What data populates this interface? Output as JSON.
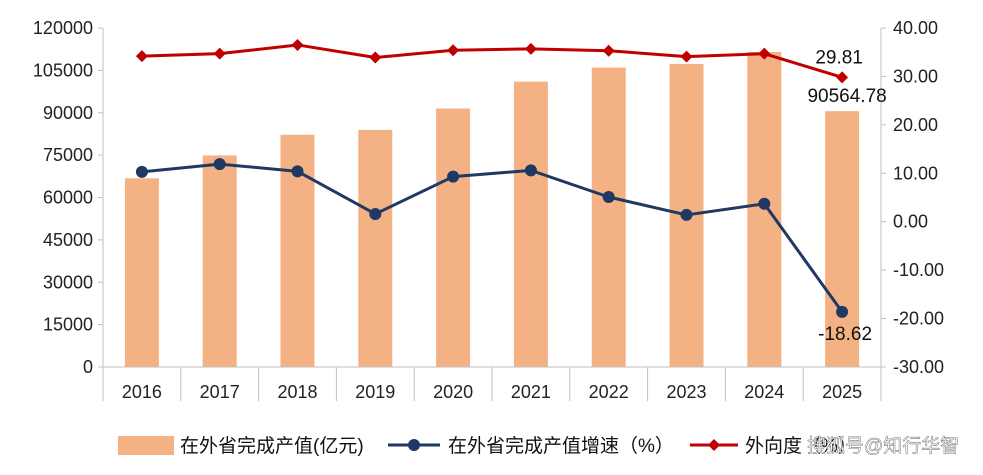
{
  "chart_data": {
    "type": "bar",
    "categories": [
      "2016",
      "2017",
      "2018",
      "2019",
      "2020",
      "2021",
      "2022",
      "2023",
      "2024",
      "2025"
    ],
    "series": [
      {
        "name": "在外省完成产值(亿元)",
        "type": "bar",
        "axis": "left",
        "color": "#f4b183",
        "values": [
          66800,
          74900,
          82200,
          83900,
          91500,
          101000,
          106000,
          107300,
          111500,
          90564.78
        ]
      },
      {
        "name": "在外省完成产值增速（%）",
        "type": "line",
        "axis": "right",
        "color": "#1f3864",
        "values": [
          10.3,
          11.9,
          10.4,
          1.6,
          9.3,
          10.6,
          5.1,
          1.4,
          3.7,
          -18.62
        ]
      },
      {
        "name": "外向度（%）",
        "type": "line",
        "axis": "right",
        "color": "#c00000",
        "values": [
          34.2,
          34.7,
          36.5,
          33.9,
          35.4,
          35.7,
          35.3,
          34.1,
          34.7,
          29.81
        ]
      }
    ],
    "y_left": {
      "min": 0,
      "max": 120000,
      "step": 15000,
      "ticks": [
        "0",
        "15000",
        "30000",
        "45000",
        "60000",
        "75000",
        "90000",
        "105000",
        "120000"
      ]
    },
    "y_right": {
      "min": -30,
      "max": 40,
      "step": 10,
      "ticks": [
        "-30.00",
        "-20.00",
        "-10.00",
        "0.00",
        "10.00",
        "20.00",
        "30.00",
        "40.00"
      ]
    },
    "annotations": {
      "ratio_2025": "29.81",
      "value_2025": "90564.78",
      "growth_2025": "-18.62"
    },
    "legend_position": "bottom",
    "grid": false
  },
  "watermark": "搜狐号@知行华智"
}
